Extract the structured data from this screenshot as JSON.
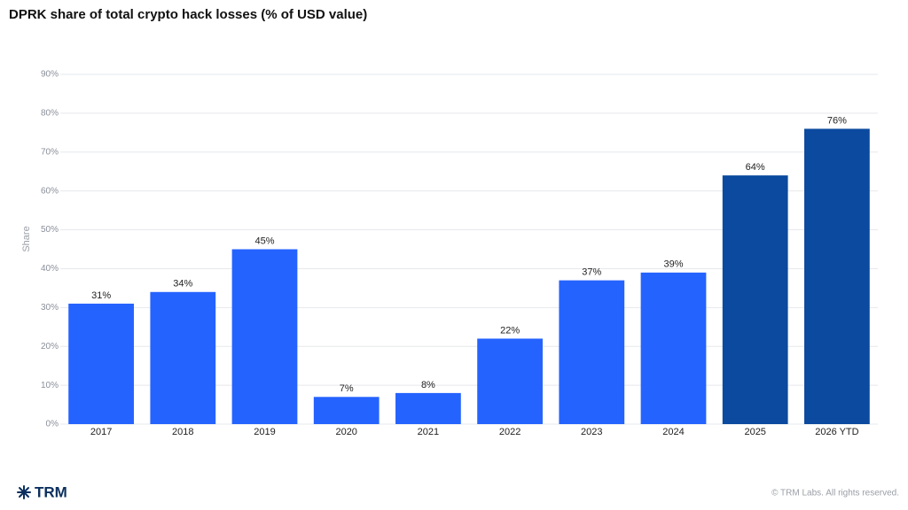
{
  "chart_data": {
    "type": "bar",
    "title": "DPRK share of total crypto hack losses (% of USD value)",
    "y_label": "Share",
    "categories": [
      "2017",
      "2018",
      "2019",
      "2020",
      "2021",
      "2022",
      "2023",
      "2024",
      "2025",
      "2026 YTD"
    ],
    "values": [
      31,
      34,
      45,
      7,
      8,
      22,
      37,
      39,
      64,
      76
    ],
    "value_labels": [
      "31%",
      "34%",
      "45%",
      "7%",
      "8%",
      "22%",
      "37%",
      "39%",
      "64%",
      "76%"
    ],
    "colors": [
      "#2563ff",
      "#2563ff",
      "#2563ff",
      "#2563ff",
      "#2563ff",
      "#2563ff",
      "#2563ff",
      "#2563ff",
      "#0b4a9e",
      "#0b4a9e"
    ],
    "ylim": [
      0,
      90
    ],
    "yticks": [
      {
        "value": 0,
        "label": "0%"
      },
      {
        "value": 10,
        "label": "10%"
      },
      {
        "value": 20,
        "label": "20%"
      },
      {
        "value": 30,
        "label": "30%"
      },
      {
        "value": 40,
        "label": "40%"
      },
      {
        "value": 50,
        "label": "50%"
      },
      {
        "value": 60,
        "label": "60%"
      },
      {
        "value": 70,
        "label": "70%"
      },
      {
        "value": 80,
        "label": "80%"
      },
      {
        "value": 90,
        "label": "90%"
      }
    ],
    "grid": true
  },
  "footer": {
    "logo": "TRM",
    "copyright": "© TRM Labs. All rights reserved."
  }
}
